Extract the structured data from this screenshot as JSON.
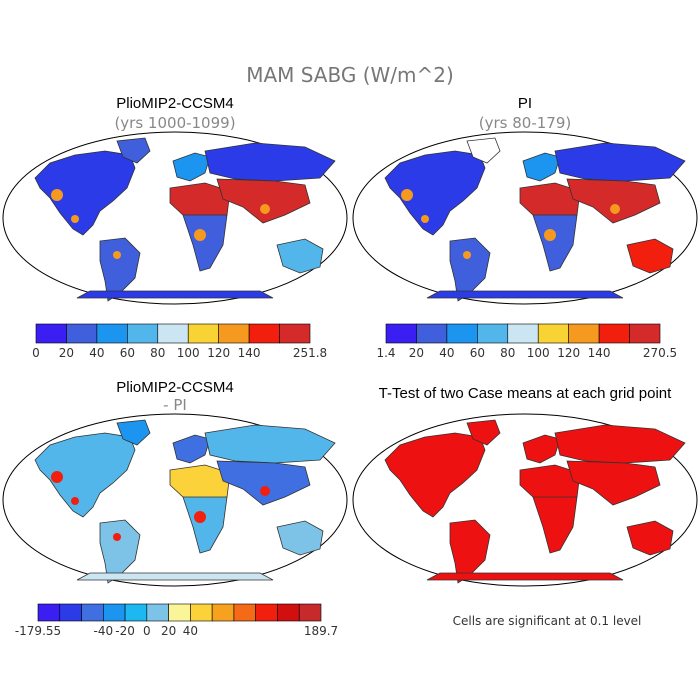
{
  "chart_data": {
    "type": "heatmap",
    "title": "MAM SABG (W/m^2)",
    "panels": [
      {
        "id": "ccsm4",
        "title": "PlioMIP2-CCSM4",
        "subtitle": "(yrs 1000-1099)",
        "colorbar": {
          "ticks": [
            "0",
            "20",
            "40",
            "60",
            "80",
            "100",
            "120",
            "140",
            "251.8"
          ],
          "colors": [
            "#3b1ff2",
            "#3f5fdc",
            "#1b95f0",
            "#52b6ea",
            "#cbe6f2",
            "#f9d234",
            "#f59a1e",
            "#f21f0e",
            "#d42a2a"
          ],
          "min": 0,
          "max": 251.8
        },
        "regions": {
          "north_america": "#2b3be8",
          "greenland": "#3f5fdc",
          "south_america": "#3f5fdc",
          "europe": "#1b95f0",
          "africa_north": "#d42a2a",
          "africa_south": "#3f5fdc",
          "asia_north": "#2b3be8",
          "asia_south": "#d42a2a",
          "australia": "#52b6ea",
          "antarctica": "#2b3be8",
          "hot_spots": "#f59a1e"
        }
      },
      {
        "id": "pi",
        "title": "PI",
        "subtitle": "(yrs 80-179)",
        "colorbar": {
          "ticks": [
            "1.4",
            "20",
            "40",
            "60",
            "80",
            "100",
            "120",
            "140",
            "270.5"
          ],
          "colors": [
            "#3b1ff2",
            "#3f5fdc",
            "#1b95f0",
            "#52b6ea",
            "#cbe6f2",
            "#f9d234",
            "#f59a1e",
            "#f21f0e",
            "#d42a2a"
          ],
          "min": 1.4,
          "max": 270.5
        },
        "regions": {
          "north_america": "#2b3be8",
          "greenland": "#ffffff",
          "south_america": "#3f5fdc",
          "europe": "#1b95f0",
          "africa_north": "#d42a2a",
          "africa_south": "#3f5fdc",
          "asia_north": "#2b3be8",
          "asia_south": "#d42a2a",
          "australia": "#f21f0e",
          "antarctica": "#2b3be8",
          "hot_spots": "#f59a1e"
        }
      },
      {
        "id": "diff",
        "title": "PlioMIP2-CCSM4",
        "subtitle": "- PI",
        "colorbar": {
          "ticks": [
            "-179.55",
            "-40",
            "-20",
            "0",
            "20",
            "40",
            "189.7"
          ],
          "colors": [
            "#3b1ff2",
            "#2b3be8",
            "#3f6fe0",
            "#1b95f0",
            "#1db8f2",
            "#7dc3e8",
            "#fbf59a",
            "#fbd23a",
            "#f7a21e",
            "#f46a16",
            "#f21f0e",
            "#d20f0f",
            "#c62a2a"
          ],
          "min": -179.55,
          "max": 189.7
        },
        "regions": {
          "north_america": "#52b6ea",
          "greenland": "#1b95f0",
          "south_america": "#7dc3e8",
          "europe": "#3f6fe0",
          "africa_north": "#fbd23a",
          "africa_south": "#52b6ea",
          "asia_north": "#52b6ea",
          "asia_south": "#3f6fe0",
          "australia": "#7dc3e8",
          "antarctica": "#cbe6f2",
          "hot_spots": "#f21f0e"
        }
      },
      {
        "id": "ttest",
        "title": "T-Test of two Case means at each grid point",
        "note": "Cells are significant at 0.1 level",
        "regions": {
          "north_america": "#ee1111",
          "greenland": "#ee1111",
          "south_america": "#ee1111",
          "europe": "#ee1111",
          "africa_north": "#ee1111",
          "africa_south": "#ee1111",
          "asia_north": "#ee1111",
          "asia_south": "#ee1111",
          "australia": "#ee1111",
          "antarctica": "#ee1111",
          "hot_spots": "#ee1111"
        }
      }
    ]
  }
}
